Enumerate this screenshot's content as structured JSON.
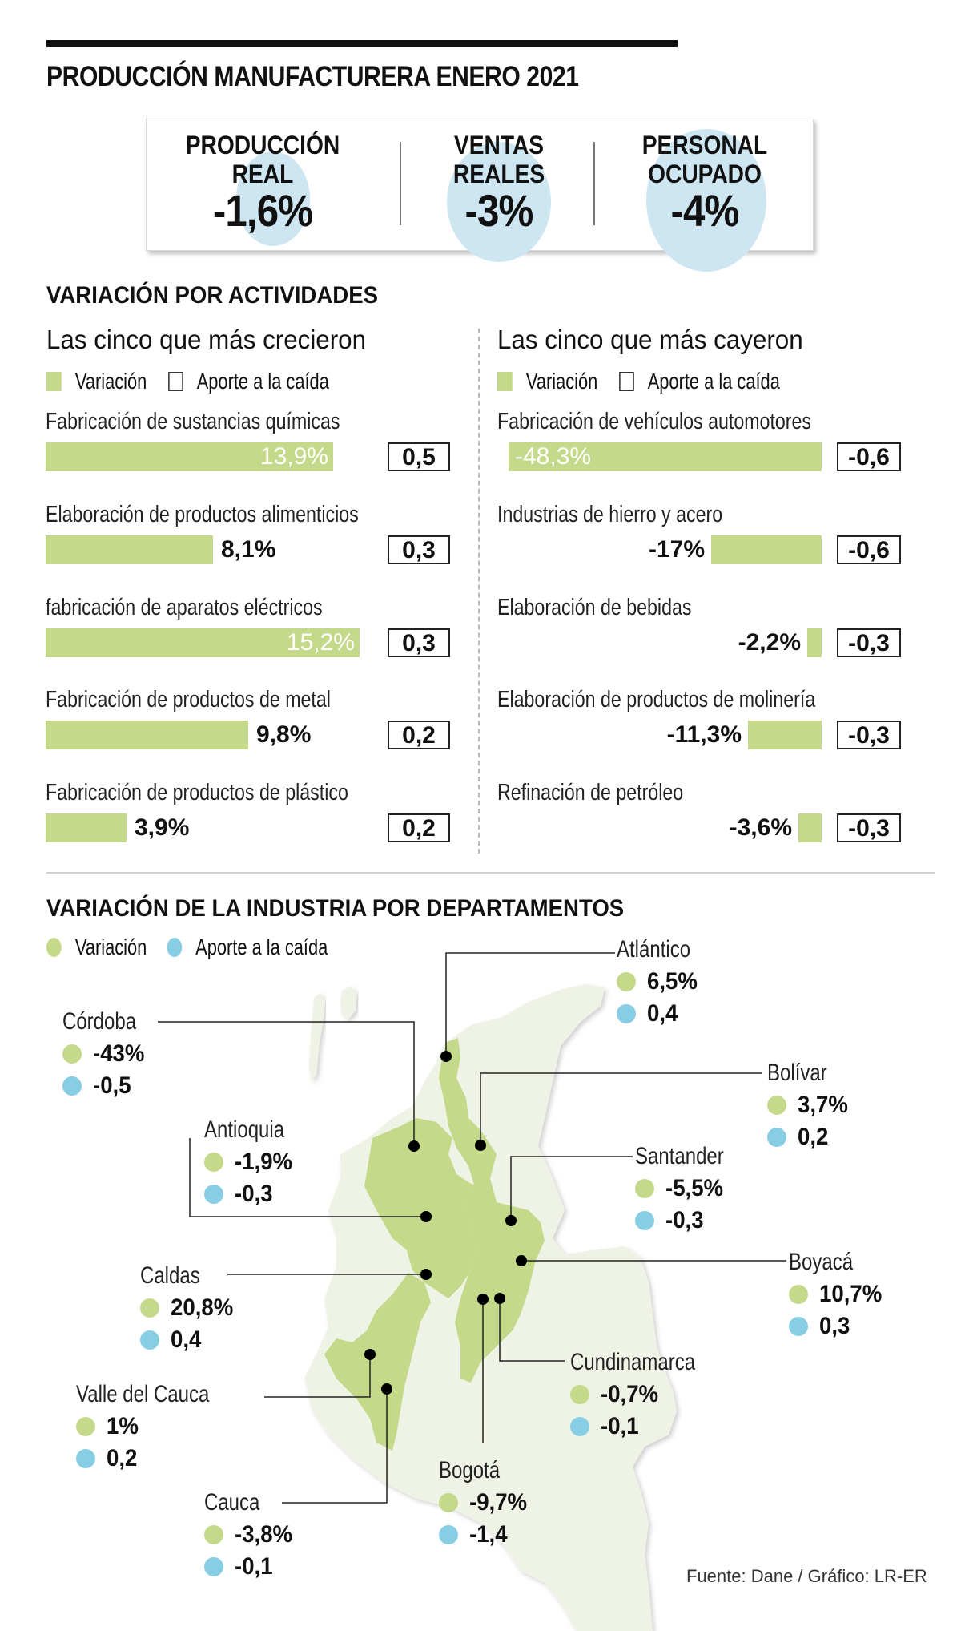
{
  "title": "PRODUCCIÓN MANUFACTURERA ENERO 2021",
  "kpis": [
    {
      "label_line1": "PRODUCCIÓN",
      "label_line2": "REAL",
      "value": "-1,6%"
    },
    {
      "label_line1": "VENTAS",
      "label_line2": "REALES",
      "value": "-3%"
    },
    {
      "label_line1": "PERSONAL",
      "label_line2": "OCUPADO",
      "value": "-4%"
    }
  ],
  "activities": {
    "title": "VARIACIÓN POR ACTIVIDADES",
    "legend": {
      "variation": "Variación",
      "contribution": "Aporte a la caída"
    },
    "growth": {
      "subtitle": "Las cinco que más crecieron",
      "rows": [
        {
          "label": "Fabricación de sustancias químicas",
          "variation": "13,9%",
          "contribution": "0,5"
        },
        {
          "label": "Elaboración de productos alimenticios",
          "variation": "8,1%",
          "contribution": "0,3"
        },
        {
          "label": "fabricación de aparatos eléctricos",
          "variation": "15,2%",
          "contribution": "0,3"
        },
        {
          "label": "Fabricación de productos de metal",
          "variation": "9,8%",
          "contribution": "0,2"
        },
        {
          "label": "Fabricación de productos de plástico",
          "variation": "3,9%",
          "contribution": "0,2"
        }
      ]
    },
    "decline": {
      "subtitle": "Las cinco que más cayeron",
      "rows": [
        {
          "label": "Fabricación de vehículos automotores",
          "variation": "-48,3%",
          "contribution": "-0,6"
        },
        {
          "label": "Industrias de hierro y acero",
          "variation": "-17%",
          "contribution": "-0,6"
        },
        {
          "label": "Elaboración de bebidas",
          "variation": "-2,2%",
          "contribution": "-0,3"
        },
        {
          "label": "Elaboración de productos de molinería",
          "variation": "-11,3%",
          "contribution": "-0,3"
        },
        {
          "label": "Refinación de petróleo",
          "variation": "-3,6%",
          "contribution": "-0,3"
        }
      ]
    }
  },
  "departments": {
    "title": "VARIACIÓN DE LA INDUSTRIA POR DEPARTAMENTOS",
    "legend": {
      "variation": "Variación",
      "contribution": "Aporte a la caída"
    },
    "items": [
      {
        "name": "Atlántico",
        "variation": "6,5%",
        "contribution": "0,4"
      },
      {
        "name": "Córdoba",
        "variation": "-43%",
        "contribution": "-0,5"
      },
      {
        "name": "Bolívar",
        "variation": "3,7%",
        "contribution": "0,2"
      },
      {
        "name": "Antioquia",
        "variation": "-1,9%",
        "contribution": "-0,3"
      },
      {
        "name": "Santander",
        "variation": "-5,5%",
        "contribution": "-0,3"
      },
      {
        "name": "Boyacá",
        "variation": "10,7%",
        "contribution": "0,3"
      },
      {
        "name": "Caldas",
        "variation": "20,8%",
        "contribution": "0,4"
      },
      {
        "name": "Cundinamarca",
        "variation": "-0,7%",
        "contribution": "-0,1"
      },
      {
        "name": "Valle del Cauca",
        "variation": "1%",
        "contribution": "0,2"
      },
      {
        "name": "Bogotá",
        "variation": "-9,7%",
        "contribution": "-1,4"
      },
      {
        "name": "Cauca",
        "variation": "-3,8%",
        "contribution": "-0,1"
      }
    ]
  },
  "colors": {
    "variation": "#c5d98a",
    "contribution": "#87cde4",
    "kpi_bubble": "#cde6f1",
    "map_base": "#eef3e6"
  },
  "source": "Fuente: Dane / Gráfico: LR-ER",
  "chart_data": [
    {
      "type": "bar",
      "title": "Las cinco que más crecieron",
      "categories": [
        "Fabricación de sustancias químicas",
        "Elaboración de productos alimenticios",
        "fabricación de aparatos eléctricos",
        "Fabricación de productos de metal",
        "Fabricación de productos de plástico"
      ],
      "series": [
        {
          "name": "Variación",
          "values": [
            13.9,
            8.1,
            15.2,
            9.8,
            3.9
          ]
        },
        {
          "name": "Aporte a la caída",
          "values": [
            0.5,
            0.3,
            0.3,
            0.2,
            0.2
          ]
        }
      ],
      "xlabel": "",
      "ylabel": "%"
    },
    {
      "type": "bar",
      "title": "Las cinco que más cayeron",
      "categories": [
        "Fabricación de vehículos automotores",
        "Industrias de hierro y acero",
        "Elaboración de bebidas",
        "Elaboración de productos de molinería",
        "Refinación de petróleo"
      ],
      "series": [
        {
          "name": "Variación",
          "values": [
            -48.3,
            -17,
            -2.2,
            -11.3,
            -3.6
          ]
        },
        {
          "name": "Aporte a la caída",
          "values": [
            -0.6,
            -0.6,
            -0.3,
            -0.3,
            -0.3
          ]
        }
      ],
      "xlabel": "",
      "ylabel": "%"
    },
    {
      "type": "table",
      "title": "Variación de la industria por departamentos",
      "categories": [
        "Atlántico",
        "Córdoba",
        "Bolívar",
        "Antioquia",
        "Santander",
        "Boyacá",
        "Caldas",
        "Cundinamarca",
        "Valle del Cauca",
        "Bogotá",
        "Cauca"
      ],
      "series": [
        {
          "name": "Variación",
          "values": [
            6.5,
            -43,
            3.7,
            -1.9,
            -5.5,
            10.7,
            20.8,
            -0.7,
            1,
            -9.7,
            -3.8
          ]
        },
        {
          "name": "Aporte a la caída",
          "values": [
            0.4,
            -0.5,
            0.2,
            -0.3,
            -0.3,
            0.3,
            0.4,
            -0.1,
            0.2,
            -1.4,
            -0.1
          ]
        }
      ]
    }
  ]
}
